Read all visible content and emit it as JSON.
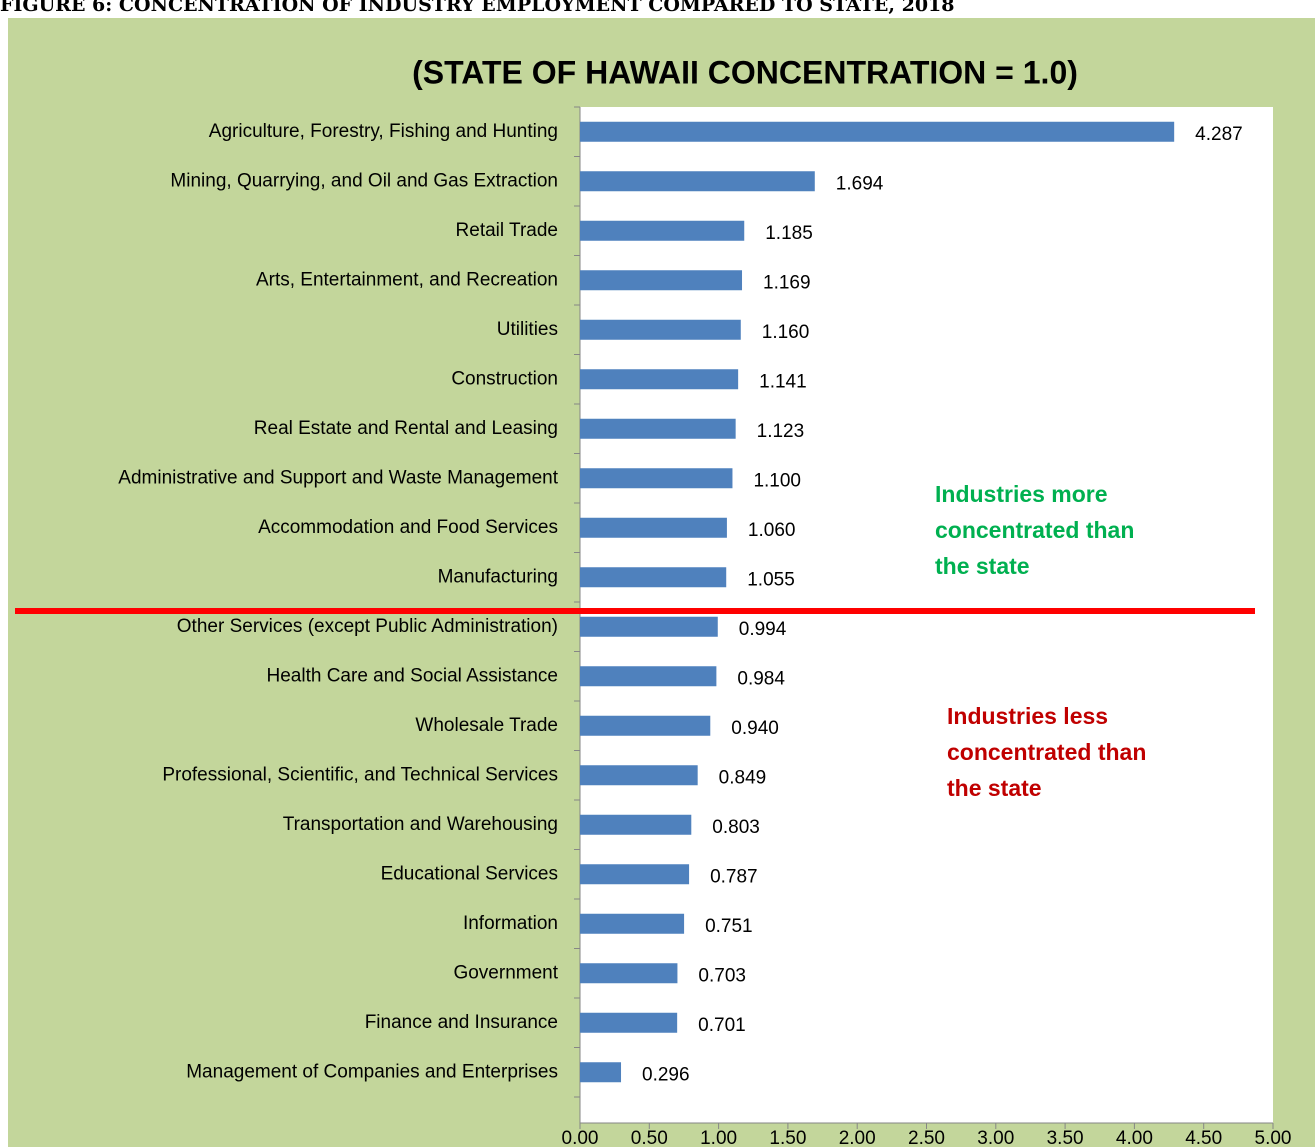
{
  "chart_data": {
    "type": "barh",
    "title": "FIGURE 6: CONCENTRATION OF INDUSTRY EMPLOYMENT COMPARED TO STATE, 2018",
    "subtitle": "(STATE OF HAWAII CONCENTRATION = 1.0)",
    "categories": [
      "Agriculture, Forestry, Fishing and Hunting",
      "Mining, Quarrying, and Oil and Gas Extraction",
      "Retail Trade",
      "Arts, Entertainment, and Recreation",
      "Utilities",
      "Construction",
      "Real Estate and Rental and Leasing",
      "Administrative and Support and Waste Management",
      "Accommodation and Food Services",
      "Manufacturing",
      "Other Services (except Public Administration)",
      "Health Care and Social Assistance",
      "Wholesale Trade",
      "Professional, Scientific, and Technical Services",
      "Transportation and Warehousing",
      "Educational Services",
      "Information",
      "Government",
      "Finance and Insurance",
      "Management of Companies and Enterprises"
    ],
    "values": [
      4.287,
      1.694,
      1.185,
      1.169,
      1.16,
      1.141,
      1.123,
      1.1,
      1.06,
      1.055,
      0.994,
      0.984,
      0.94,
      0.849,
      0.803,
      0.787,
      0.751,
      0.703,
      0.701,
      0.296
    ],
    "value_labels": [
      "4.287",
      "1.694",
      "1.185",
      "1.169",
      "1.160",
      "1.141",
      "1.123",
      "1.100",
      "1.060",
      "1.055",
      "0.994",
      "0.984",
      "0.940",
      "0.849",
      "0.803",
      "0.787",
      "0.751",
      "0.703",
      "0.701",
      "0.296"
    ],
    "color": "#4f81bd",
    "xlim": [
      0,
      5
    ],
    "xticks": [
      {
        "value": 0,
        "label": "0.00"
      },
      {
        "value": 0.5,
        "label": "0.50"
      },
      {
        "value": 1,
        "label": "1.00"
      },
      {
        "value": 1.5,
        "label": "1.50"
      },
      {
        "value": 2,
        "label": "2.00"
      },
      {
        "value": 2.5,
        "label": "2.50"
      },
      {
        "value": 3,
        "label": "3.00"
      },
      {
        "value": 3.5,
        "label": "3.50"
      },
      {
        "value": 4,
        "label": "4.00"
      },
      {
        "value": 4.5,
        "label": "4.50"
      },
      {
        "value": 5,
        "label": "5.00"
      }
    ],
    "annotations": [
      {
        "lines": [
          "Industries more",
          "concentrated than",
          "the state"
        ],
        "color": "#00b050"
      },
      {
        "lines": [
          "Industries less",
          "concentrated than",
          "the state"
        ],
        "color": "#c00000"
      }
    ]
  }
}
